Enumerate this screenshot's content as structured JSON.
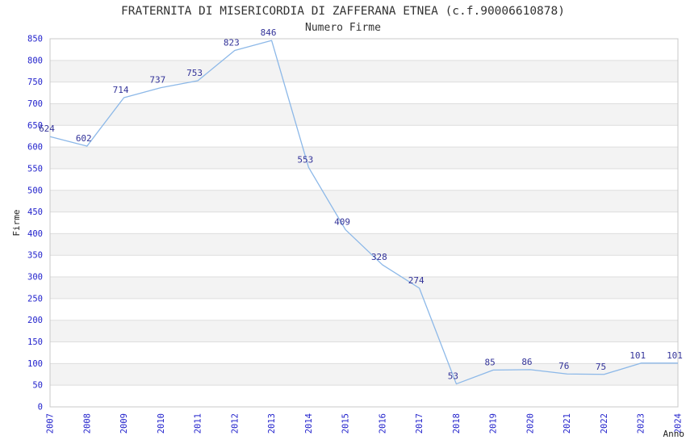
{
  "chart_data": {
    "type": "line",
    "title": "FRATERNITA DI MISERICORDIA DI ZAFFERANA ETNEA (c.f.90006610878)",
    "subtitle": "Numero Firme",
    "xlabel": "Anno",
    "ylabel": "Firme",
    "categories": [
      "2007",
      "2008",
      "2009",
      "2010",
      "2011",
      "2012",
      "2013",
      "2014",
      "2015",
      "2016",
      "2017",
      "2018",
      "2019",
      "2020",
      "2021",
      "2022",
      "2023",
      "2024"
    ],
    "values": [
      624,
      602,
      714,
      737,
      753,
      823,
      846,
      553,
      409,
      328,
      274,
      53,
      85,
      86,
      76,
      75,
      101,
      101
    ],
    "ylim": [
      0,
      850
    ],
    "ytick_step": 50,
    "grid": "horizontal",
    "legend": "none",
    "band_fill_alternating": true,
    "x_tick_rotation": -90,
    "colors": {
      "line": "#8cb8e8",
      "data_label": "#333399",
      "tick_label": "#2222cc",
      "axis_label": "#222222",
      "title": "#333333",
      "band": "#f3f3f3",
      "band_alt": "#ffffff",
      "gridline": "#dddddd",
      "plot_border": "#c8c8c8",
      "background": "#ffffff"
    }
  }
}
